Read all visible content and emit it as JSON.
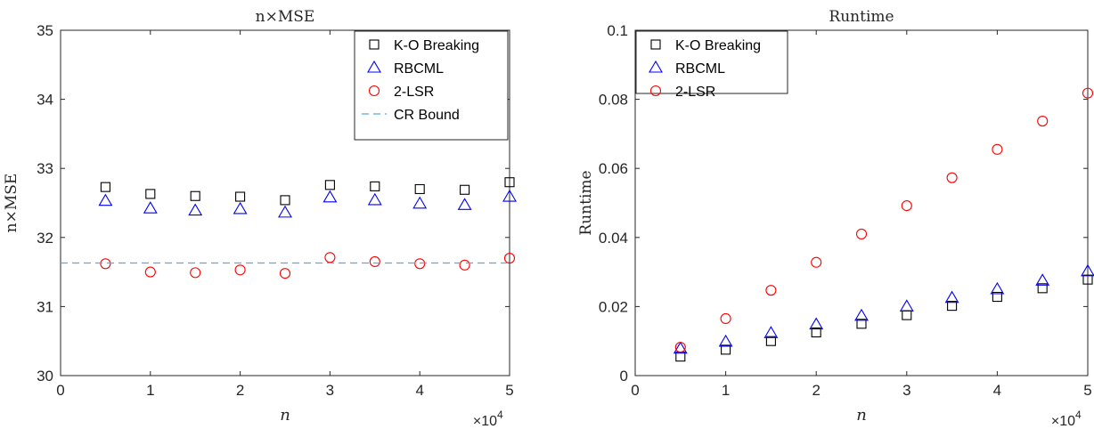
{
  "chart_data": [
    {
      "type": "scatter",
      "title": "n×MSE",
      "xlabel": "n",
      "ylabel": "n×MSE",
      "x_exponent_label": "×10",
      "x_exponent_power": "4",
      "xlim": [
        0,
        5
      ],
      "ylim": [
        30,
        35
      ],
      "xticks": [
        0,
        1,
        2,
        3,
        4,
        5
      ],
      "yticks": [
        30,
        31,
        32,
        33,
        34,
        35
      ],
      "grid": false,
      "legend_position": "top-right",
      "x": [
        0.5,
        1.0,
        1.5,
        2.0,
        2.5,
        3.0,
        3.5,
        4.0,
        4.5,
        5.0
      ],
      "series": [
        {
          "name": "K-O Breaking",
          "marker": "square",
          "color": "#000000",
          "values": [
            32.73,
            32.63,
            32.6,
            32.59,
            32.54,
            32.76,
            32.74,
            32.7,
            32.69,
            32.8
          ]
        },
        {
          "name": "RBCML",
          "marker": "triangle",
          "color": "#0000ff",
          "values": [
            32.53,
            32.42,
            32.39,
            32.41,
            32.36,
            32.58,
            32.54,
            32.49,
            32.47,
            32.59
          ]
        },
        {
          "name": "2-LSR",
          "marker": "circle",
          "color": "#ff0000",
          "values": [
            31.62,
            31.5,
            31.49,
            31.53,
            31.48,
            31.71,
            31.65,
            31.62,
            31.6,
            31.7
          ]
        },
        {
          "name": "CR Bound",
          "marker": "dashed-line",
          "color": "#5aa9d6",
          "values": [
            31.63
          ]
        }
      ]
    },
    {
      "type": "scatter",
      "title": "Runtime",
      "xlabel": "n",
      "ylabel": "Runtime",
      "x_exponent_label": "×10",
      "x_exponent_power": "4",
      "xlim": [
        0,
        5
      ],
      "ylim": [
        0,
        0.1
      ],
      "xticks": [
        0,
        1,
        2,
        3,
        4,
        5
      ],
      "yticks": [
        "0",
        "0.02",
        "0.04",
        "0.06",
        "0.08",
        "0.1"
      ],
      "grid": false,
      "legend_position": "top-left",
      "x": [
        0.5,
        1.0,
        1.5,
        2.0,
        2.5,
        3.0,
        3.5,
        4.0,
        4.5,
        5.0
      ],
      "series": [
        {
          "name": "K-O Breaking",
          "marker": "square",
          "color": "#000000",
          "values": [
            0.0055,
            0.0075,
            0.01,
            0.0125,
            0.015,
            0.0175,
            0.0202,
            0.0228,
            0.0253,
            0.0278
          ]
        },
        {
          "name": "RBCML",
          "marker": "triangle",
          "color": "#0000ff",
          "values": [
            0.0078,
            0.0098,
            0.0123,
            0.0148,
            0.0173,
            0.02,
            0.0225,
            0.025,
            0.0275,
            0.0302
          ]
        },
        {
          "name": "2-LSR",
          "marker": "circle",
          "color": "#ff0000",
          "values": [
            0.0082,
            0.0165,
            0.0247,
            0.0328,
            0.041,
            0.0492,
            0.0573,
            0.0655,
            0.0737,
            0.0818
          ]
        }
      ]
    }
  ]
}
